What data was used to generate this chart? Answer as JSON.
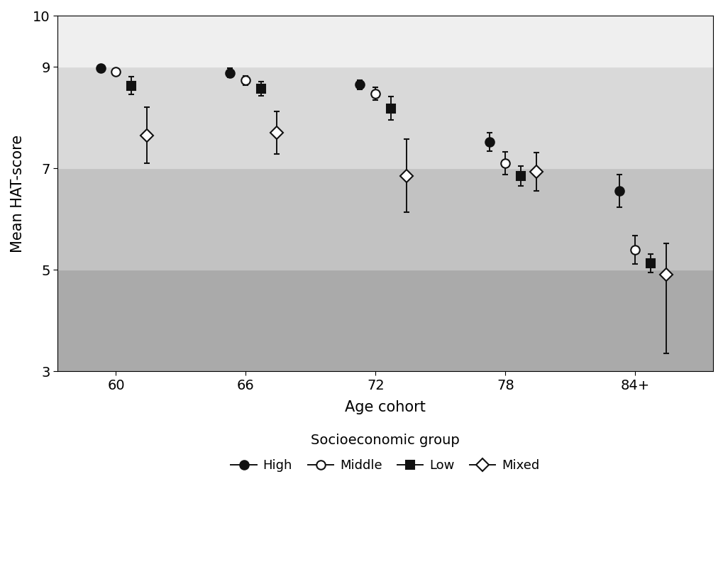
{
  "title": "",
  "ylabel": "Mean HAT-score",
  "xlabel": "Age cohort",
  "legend_title": "Socioeconomic group",
  "ylim": [
    3,
    10
  ],
  "yticks": [
    3,
    5,
    7,
    9,
    10
  ],
  "xtick_labels": [
    "60",
    "66",
    "72",
    "78",
    "84+"
  ],
  "xtick_positions": [
    1,
    2,
    3,
    4,
    5
  ],
  "shade_bands": [
    {
      "ymin": 3,
      "ymax": 5,
      "color": "#aaaaaa"
    },
    {
      "ymin": 5,
      "ymax": 7,
      "color": "#c2c2c2"
    },
    {
      "ymin": 7,
      "ymax": 9,
      "color": "#d9d9d9"
    },
    {
      "ymin": 9,
      "ymax": 10,
      "color": "#efefef"
    }
  ],
  "series": [
    {
      "name": "High",
      "marker": "o",
      "mfc": "#111111",
      "mec": "#111111",
      "x": [
        0.88,
        1.88,
        2.88,
        3.88,
        4.88
      ],
      "y": [
        8.97,
        8.88,
        8.65,
        7.52,
        6.55
      ],
      "yerr_low": [
        0.05,
        0.09,
        0.09,
        0.18,
        0.32
      ],
      "yerr_high": [
        0.05,
        0.09,
        0.09,
        0.18,
        0.32
      ]
    },
    {
      "name": "Middle",
      "marker": "o",
      "mfc": "#ffffff",
      "mec": "#111111",
      "x": [
        1.0,
        2.0,
        3.0,
        4.0,
        5.0
      ],
      "y": [
        8.9,
        8.73,
        8.47,
        7.1,
        5.4
      ],
      "yerr_low": [
        0.05,
        0.09,
        0.13,
        0.22,
        0.28
      ],
      "yerr_high": [
        0.05,
        0.09,
        0.13,
        0.22,
        0.28
      ]
    },
    {
      "name": "Low",
      "marker": "s",
      "mfc": "#111111",
      "mec": "#111111",
      "x": [
        1.12,
        2.12,
        3.12,
        4.12,
        5.12
      ],
      "y": [
        8.63,
        8.57,
        8.18,
        6.85,
        5.13
      ],
      "yerr_low": [
        0.17,
        0.14,
        0.23,
        0.2,
        0.18
      ],
      "yerr_high": [
        0.17,
        0.14,
        0.23,
        0.2,
        0.18
      ]
    },
    {
      "name": "Mixed",
      "marker": "D",
      "mfc": "#ffffff",
      "mec": "#111111",
      "x": [
        1.24,
        2.24,
        3.24,
        4.24,
        5.24
      ],
      "y": [
        7.65,
        7.7,
        6.85,
        6.93,
        4.9
      ],
      "yerr_low": [
        0.55,
        0.42,
        0.72,
        0.38,
        1.55
      ],
      "yerr_high": [
        0.55,
        0.42,
        0.72,
        0.38,
        0.62
      ]
    }
  ],
  "markersize": 9,
  "capsize": 3,
  "elinewidth": 1.4,
  "markeredgewidth": 1.5
}
